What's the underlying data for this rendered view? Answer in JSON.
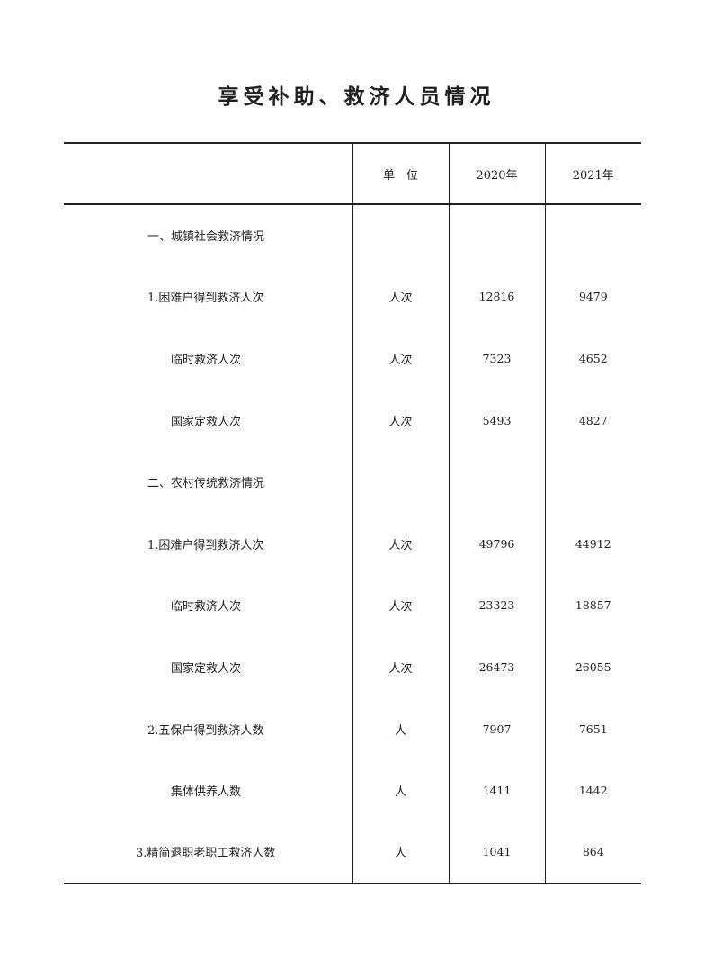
{
  "title": "享受补助、救济人员情况",
  "header": {
    "item": "",
    "unit": "单　位",
    "y2020": "2020年",
    "y2021": "2021年"
  },
  "rows": [
    {
      "label": "一、城镇社会救济情况",
      "unit": "",
      "y2020": "",
      "y2021": "",
      "level": 0
    },
    {
      "label": "1.困难户得到救济人次",
      "unit": "人次",
      "y2020": "12816",
      "y2021": "9479",
      "level": 1
    },
    {
      "label": "临时救济人次",
      "unit": "人次",
      "y2020": "7323",
      "y2021": "4652",
      "level": 2
    },
    {
      "label": "国家定救人次",
      "unit": "人次",
      "y2020": "5493",
      "y2021": "4827",
      "level": 2
    },
    {
      "label": "二、农村传统救济情况",
      "unit": "",
      "y2020": "",
      "y2021": "",
      "level": 0
    },
    {
      "label": "1.困难户得到救济人次",
      "unit": "人次",
      "y2020": "49796",
      "y2021": "44912",
      "level": 1
    },
    {
      "label": "临时救济人次",
      "unit": "人次",
      "y2020": "23323",
      "y2021": "18857",
      "level": 2
    },
    {
      "label": "国家定救人次",
      "unit": "人次",
      "y2020": "26473",
      "y2021": "26055",
      "level": 2
    },
    {
      "label": "2.五保户得到救济人数",
      "unit": "人",
      "y2020": "7907",
      "y2021": "7651",
      "level": 1
    },
    {
      "label": "集体供养人数",
      "unit": "人",
      "y2020": "1411",
      "y2021": "1442",
      "level": 2
    },
    {
      "label": "3.精简退职老职工救济人数",
      "unit": "人",
      "y2020": "1041",
      "y2021": "864",
      "level": 3
    }
  ]
}
